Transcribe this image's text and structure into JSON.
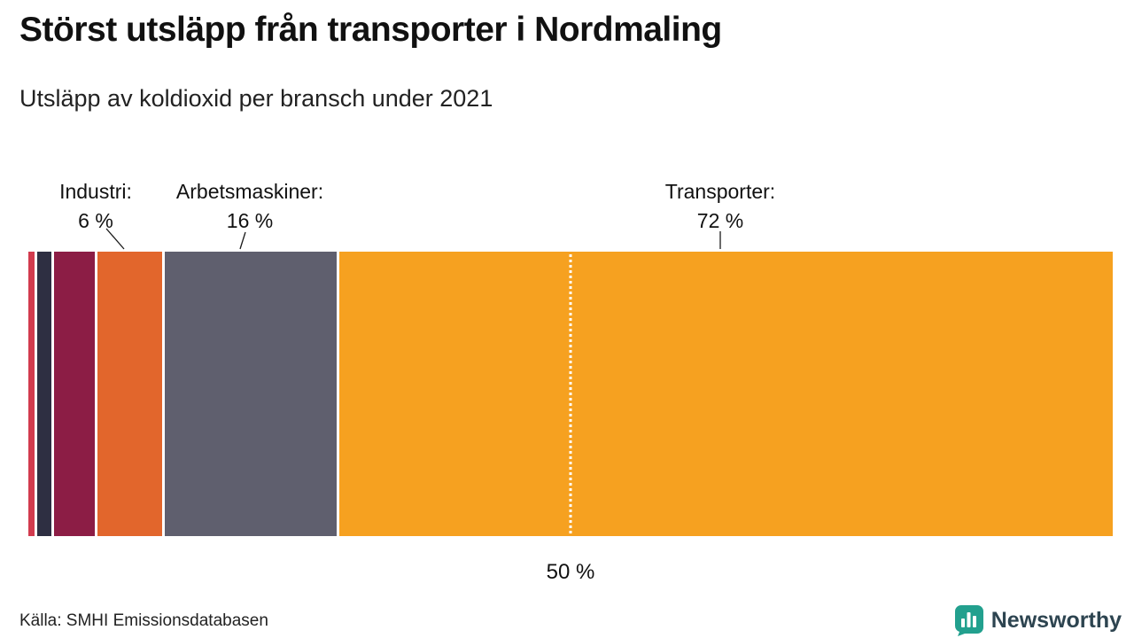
{
  "header": {
    "title": "Störst utsläpp från transporter i Nordmaling",
    "subtitle": "Utsläpp av koldioxid per bransch under 2021"
  },
  "chart_data": {
    "type": "bar",
    "orientation": "horizontal-stacked",
    "title": "Störst utsläpp från transporter i Nordmaling",
    "subtitle": "Utsläpp av koldioxid per bransch under 2021",
    "unit": "%",
    "xlim": [
      0,
      100
    ],
    "series": [
      {
        "name": "",
        "value": 0.6,
        "color": "#d23b4e"
      },
      {
        "name": "",
        "value": 1.3,
        "color": "#2e2f42"
      },
      {
        "name": "",
        "value": 3.8,
        "color": "#8c1d45"
      },
      {
        "name": "Industri",
        "value": 6,
        "color": "#e2662c",
        "label": "Industri:",
        "value_label": "6 %"
      },
      {
        "name": "Arbetsmaskiner",
        "value": 16,
        "color": "#5f5f6e",
        "label": "Arbetsmaskiner:",
        "value_label": "16 %"
      },
      {
        "name": "Transporter",
        "value": 72,
        "color": "#f6a120",
        "label": "Transporter:",
        "value_label": "72 %"
      }
    ],
    "reference_line": {
      "value": 50,
      "label": "50 %"
    }
  },
  "footer": {
    "source": "Källa: SMHI Emissionsdatabasen",
    "brand": "Newsworthy"
  },
  "colors": {
    "brand_icon": "#22a08e",
    "brand_text": "#2d4450"
  }
}
